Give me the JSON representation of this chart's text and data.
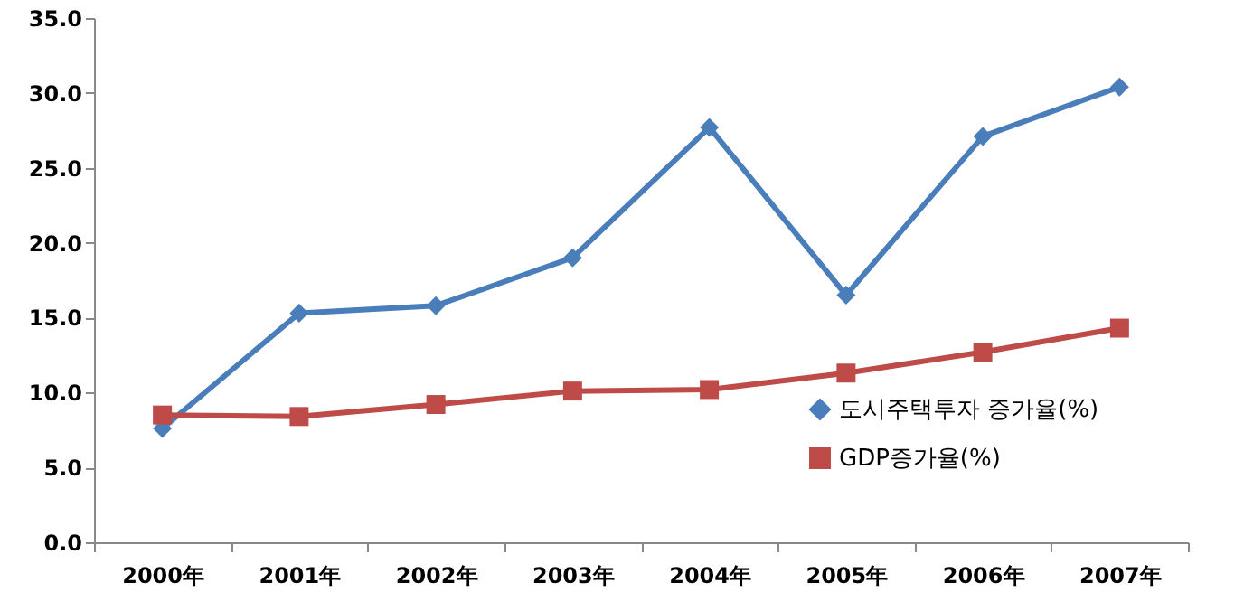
{
  "chart_data": {
    "type": "line",
    "categories": [
      "2000年",
      "2001年",
      "2002年",
      "2003年",
      "2004年",
      "2005年",
      "2006年",
      "2007年"
    ],
    "series": [
      {
        "name": "도시주택투자 증가율(%)",
        "color": "#4a7ebb",
        "marker": "diamond",
        "values": [
          7.6,
          15.3,
          15.8,
          19.0,
          27.7,
          16.5,
          27.1,
          30.4
        ]
      },
      {
        "name": "GDP증가율(%)",
        "color": "#be4b48",
        "marker": "square",
        "values": [
          8.5,
          8.4,
          9.2,
          10.1,
          10.2,
          11.3,
          12.7,
          14.3
        ]
      }
    ],
    "ylim": [
      0,
      35
    ],
    "yticks": [
      {
        "value": 0,
        "label": "0.0"
      },
      {
        "value": 5,
        "label": "5.0"
      },
      {
        "value": 10,
        "label": "10.0"
      },
      {
        "value": 15,
        "label": "15.0"
      },
      {
        "value": 20,
        "label": "20.0"
      },
      {
        "value": 25,
        "label": "25.0"
      },
      {
        "value": 30,
        "label": "30.0"
      },
      {
        "value": 35,
        "label": "35.0"
      }
    ],
    "grid": false,
    "legend": "bottom right",
    "line_style": "solid"
  }
}
